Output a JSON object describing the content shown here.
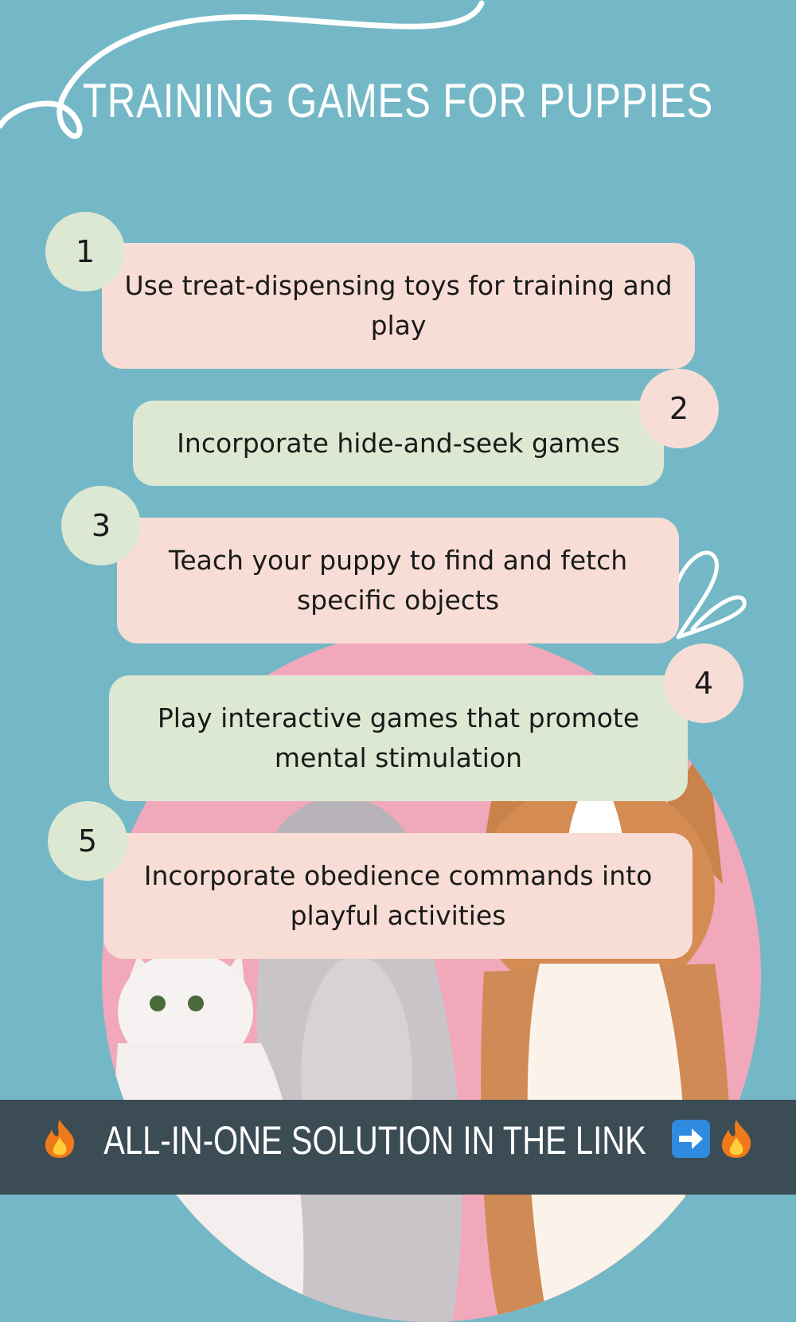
{
  "header": {
    "title": "TRAINING GAMES FOR PUPPIES"
  },
  "tips": [
    {
      "number": "1",
      "text": "Use treat-dispensing toys for training and play"
    },
    {
      "number": "2",
      "text": "Incorporate hide-and-seek games"
    },
    {
      "number": "3",
      "text": "Teach your puppy to find and fetch specific objects"
    },
    {
      "number": "4",
      "text": "Play interactive games that promote mental stimulation"
    },
    {
      "number": "5",
      "text": "Incorporate obedience commands into playful activities"
    }
  ],
  "footer": {
    "text": "ALL-IN-ONE SOLUTION IN THE LINK",
    "icons": [
      "fire-icon",
      "arrow-right-icon",
      "fire-icon"
    ]
  },
  "colors": {
    "background": "#74b8c7",
    "card_pink": "#f7ddd5",
    "card_green": "#dde8d2",
    "photo_backdrop": "#f2a8bb",
    "footer_bar": "#3c4c54",
    "arrow_badge": "#2f8be0"
  }
}
